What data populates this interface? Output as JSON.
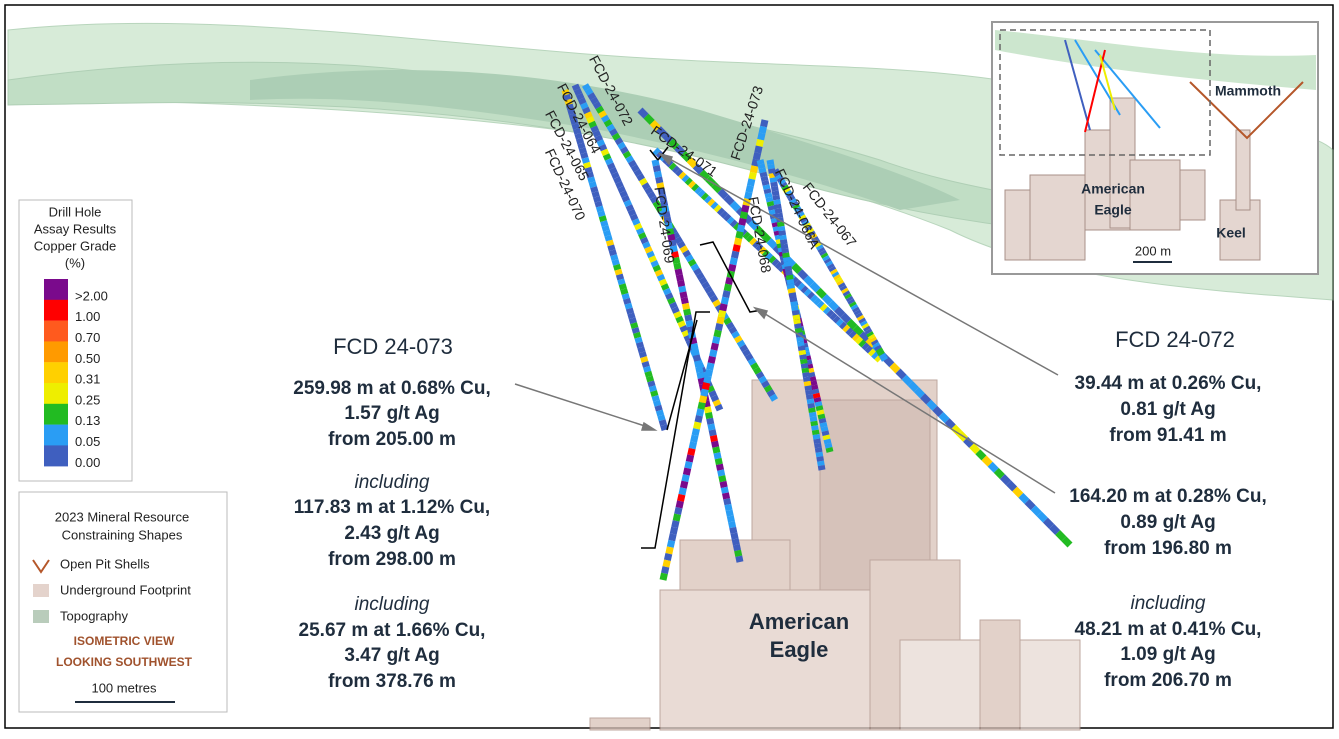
{
  "hole_labels": [
    "FCD-24-070",
    "FCD-24-065",
    "FCD-24-064",
    "FCD-24-072",
    "FCD-24-071",
    "FCD-24-069",
    "FCD-24-073",
    "FCD-24-068",
    "FCD-24-066A",
    "FCD-24-067"
  ],
  "grade_legend": {
    "title": [
      "Drill Hole",
      "Assay Results",
      "Copper Grade",
      "(%)"
    ],
    "items": [
      {
        "label": ">2.00",
        "color": "#7a0a8c"
      },
      {
        "label": "1.00",
        "color": "#ff0000"
      },
      {
        "label": "0.70",
        "color": "#ff5a1e"
      },
      {
        "label": "0.50",
        "color": "#ff9a00"
      },
      {
        "label": "0.31",
        "color": "#ffd000"
      },
      {
        "label": "0.25",
        "color": "#eeee00"
      },
      {
        "label": "0.13",
        "color": "#22bb22"
      },
      {
        "label": "0.05",
        "color": "#2a9df4"
      },
      {
        "label": "0.00",
        "color": "#3f5fbf"
      }
    ]
  },
  "shapes_legend": {
    "title": [
      "2023 Mineral Resource",
      "Constraining Shapes"
    ],
    "items": [
      "Open Pit Shells",
      "Underground Footprint",
      "Topography"
    ],
    "view": [
      "ISOMETRIC VIEW",
      "LOOKING SOUTHWEST"
    ],
    "scale": "100 metres"
  },
  "left_callout": {
    "title": "FCD 24-073",
    "blocks": [
      {
        "lines": [
          "259.98 m at 0.68% Cu,",
          "1.57 g/t Ag",
          "from 205.00 m"
        ]
      },
      {
        "heading": "including",
        "lines": [
          "117.83 m at 1.12% Cu,",
          "2.43 g/t Ag",
          "from 298.00 m"
        ]
      },
      {
        "heading": "including",
        "lines": [
          "25.67 m at 1.66% Cu,",
          "3.47 g/t Ag",
          "from 378.76 m"
        ]
      }
    ]
  },
  "right_callout": {
    "title": "FCD 24-072",
    "blocks": [
      {
        "lines": [
          "39.44 m at 0.26% Cu,",
          "0.81 g/t Ag",
          "from 91.41 m"
        ]
      },
      {
        "lines": [
          "164.20 m at 0.28% Cu,",
          "0.89 g/t Ag",
          "from 196.80 m"
        ]
      },
      {
        "heading": "including",
        "lines": [
          "48.21 m at 0.41% Cu,",
          "1.09 g/t Ag",
          "from 206.70 m"
        ]
      }
    ]
  },
  "main_label": [
    "American",
    "Eagle"
  ],
  "inset": {
    "mammoth": "Mammoth",
    "american_eagle": [
      "American",
      "Eagle"
    ],
    "keel": "Keel",
    "scale": "200 m"
  }
}
